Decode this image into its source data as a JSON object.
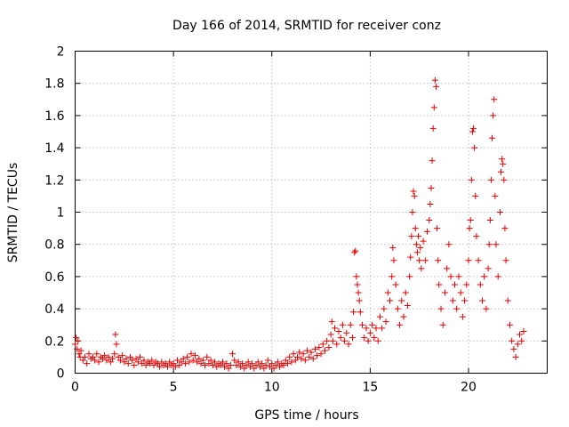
{
  "chart_data": {
    "type": "scatter",
    "title": "Day 166 of 2014, SRMTID for receiver conz",
    "xlabel": "GPS time / hours",
    "ylabel": "SRMTID / TECUs",
    "xlim": [
      0,
      24
    ],
    "ylim": [
      0,
      2
    ],
    "xticks": [
      0,
      5,
      10,
      15,
      20
    ],
    "yticks": [
      0,
      0.2,
      0.4,
      0.6,
      0.8,
      1,
      1.2,
      1.4,
      1.6,
      1.8,
      2
    ],
    "xtick_labels": [
      "0",
      "5",
      "10",
      "15",
      "20"
    ],
    "ytick_labels": [
      "0",
      "0.2",
      "0.4",
      "0.6",
      "0.8",
      "1",
      "1.2",
      "1.4",
      "1.6",
      "1.8",
      "2"
    ],
    "grid": true,
    "marker": "plus",
    "color": "#e00000",
    "series": [
      {
        "name": "conz",
        "points": [
          [
            0.0,
            0.18
          ],
          [
            0.05,
            0.22
          ],
          [
            0.1,
            0.15
          ],
          [
            0.15,
            0.2
          ],
          [
            0.2,
            0.12
          ],
          [
            0.25,
            0.1
          ],
          [
            0.3,
            0.14
          ],
          [
            0.4,
            0.08
          ],
          [
            0.5,
            0.1
          ],
          [
            0.6,
            0.06
          ],
          [
            0.7,
            0.12
          ],
          [
            0.8,
            0.09
          ],
          [
            0.9,
            0.1
          ],
          [
            1.0,
            0.08
          ],
          [
            1.1,
            0.12
          ],
          [
            1.2,
            0.07
          ],
          [
            1.3,
            0.1
          ],
          [
            1.4,
            0.09
          ],
          [
            1.5,
            0.11
          ],
          [
            1.6,
            0.08
          ],
          [
            1.7,
            0.1
          ],
          [
            1.8,
            0.07
          ],
          [
            1.9,
            0.09
          ],
          [
            2.0,
            0.12
          ],
          [
            2.05,
            0.24
          ],
          [
            2.1,
            0.18
          ],
          [
            2.2,
            0.1
          ],
          [
            2.3,
            0.08
          ],
          [
            2.4,
            0.11
          ],
          [
            2.5,
            0.07
          ],
          [
            2.6,
            0.09
          ],
          [
            2.7,
            0.06
          ],
          [
            2.8,
            0.1
          ],
          [
            2.9,
            0.08
          ],
          [
            3.0,
            0.05
          ],
          [
            3.1,
            0.09
          ],
          [
            3.2,
            0.07
          ],
          [
            3.3,
            0.1
          ],
          [
            3.4,
            0.06
          ],
          [
            3.5,
            0.08
          ],
          [
            3.6,
            0.05
          ],
          [
            3.7,
            0.07
          ],
          [
            3.8,
            0.06
          ],
          [
            3.9,
            0.08
          ],
          [
            4.0,
            0.05
          ],
          [
            4.1,
            0.07
          ],
          [
            4.2,
            0.06
          ],
          [
            4.3,
            0.04
          ],
          [
            4.4,
            0.07
          ],
          [
            4.5,
            0.05
          ],
          [
            4.6,
            0.06
          ],
          [
            4.7,
            0.04
          ],
          [
            4.8,
            0.07
          ],
          [
            4.9,
            0.05
          ],
          [
            5.0,
            0.06
          ],
          [
            5.1,
            0.04
          ],
          [
            5.2,
            0.08
          ],
          [
            5.3,
            0.05
          ],
          [
            5.4,
            0.07
          ],
          [
            5.5,
            0.09
          ],
          [
            5.6,
            0.06
          ],
          [
            5.7,
            0.1
          ],
          [
            5.8,
            0.07
          ],
          [
            5.9,
            0.12
          ],
          [
            6.0,
            0.08
          ],
          [
            6.1,
            0.11
          ],
          [
            6.2,
            0.07
          ],
          [
            6.3,
            0.09
          ],
          [
            6.4,
            0.06
          ],
          [
            6.5,
            0.08
          ],
          [
            6.6,
            0.05
          ],
          [
            6.7,
            0.1
          ],
          [
            6.8,
            0.06
          ],
          [
            6.9,
            0.08
          ],
          [
            7.0,
            0.05
          ],
          [
            7.1,
            0.07
          ],
          [
            7.2,
            0.04
          ],
          [
            7.3,
            0.06
          ],
          [
            7.4,
            0.05
          ],
          [
            7.5,
            0.07
          ],
          [
            7.6,
            0.04
          ],
          [
            7.7,
            0.06
          ],
          [
            7.8,
            0.03
          ],
          [
            7.9,
            0.05
          ],
          [
            8.0,
            0.12
          ],
          [
            8.1,
            0.08
          ],
          [
            8.2,
            0.05
          ],
          [
            8.3,
            0.07
          ],
          [
            8.4,
            0.04
          ],
          [
            8.5,
            0.06
          ],
          [
            8.6,
            0.03
          ],
          [
            8.7,
            0.05
          ],
          [
            8.8,
            0.07
          ],
          [
            8.9,
            0.04
          ],
          [
            9.0,
            0.06
          ],
          [
            9.1,
            0.03
          ],
          [
            9.2,
            0.05
          ],
          [
            9.3,
            0.07
          ],
          [
            9.4,
            0.04
          ],
          [
            9.5,
            0.06
          ],
          [
            9.6,
            0.03
          ],
          [
            9.7,
            0.05
          ],
          [
            9.8,
            0.08
          ],
          [
            9.9,
            0.04
          ],
          [
            10.0,
            0.06
          ],
          [
            10.1,
            0.03
          ],
          [
            10.2,
            0.05
          ],
          [
            10.3,
            0.07
          ],
          [
            10.4,
            0.04
          ],
          [
            10.5,
            0.06
          ],
          [
            10.6,
            0.05
          ],
          [
            10.7,
            0.08
          ],
          [
            10.8,
            0.06
          ],
          [
            10.9,
            0.1
          ],
          [
            11.0,
            0.07
          ],
          [
            11.1,
            0.12
          ],
          [
            11.2,
            0.08
          ],
          [
            11.3,
            0.1
          ],
          [
            11.4,
            0.13
          ],
          [
            11.5,
            0.09
          ],
          [
            11.6,
            0.12
          ],
          [
            11.7,
            0.08
          ],
          [
            11.8,
            0.14
          ],
          [
            11.9,
            0.1
          ],
          [
            12.0,
            0.13
          ],
          [
            12.1,
            0.09
          ],
          [
            12.2,
            0.15
          ],
          [
            12.3,
            0.11
          ],
          [
            12.4,
            0.16
          ],
          [
            12.5,
            0.12
          ],
          [
            12.6,
            0.18
          ],
          [
            12.7,
            0.14
          ],
          [
            12.8,
            0.2
          ],
          [
            12.9,
            0.16
          ],
          [
            13.0,
            0.24
          ],
          [
            13.05,
            0.32
          ],
          [
            13.1,
            0.2
          ],
          [
            13.2,
            0.28
          ],
          [
            13.3,
            0.18
          ],
          [
            13.4,
            0.26
          ],
          [
            13.5,
            0.22
          ],
          [
            13.6,
            0.3
          ],
          [
            13.7,
            0.2
          ],
          [
            13.8,
            0.25
          ],
          [
            13.9,
            0.18
          ],
          [
            14.0,
            0.3
          ],
          [
            14.1,
            0.22
          ],
          [
            14.15,
            0.38
          ],
          [
            14.2,
            0.75
          ],
          [
            14.25,
            0.76
          ],
          [
            14.3,
            0.6
          ],
          [
            14.35,
            0.55
          ],
          [
            14.4,
            0.5
          ],
          [
            14.45,
            0.45
          ],
          [
            14.5,
            0.38
          ],
          [
            14.6,
            0.3
          ],
          [
            14.7,
            0.22
          ],
          [
            14.8,
            0.28
          ],
          [
            14.9,
            0.2
          ],
          [
            15.0,
            0.25
          ],
          [
            15.1,
            0.3
          ],
          [
            15.2,
            0.22
          ],
          [
            15.3,
            0.28
          ],
          [
            15.4,
            0.2
          ],
          [
            15.5,
            0.35
          ],
          [
            15.6,
            0.28
          ],
          [
            15.7,
            0.4
          ],
          [
            15.8,
            0.32
          ],
          [
            15.9,
            0.5
          ],
          [
            16.0,
            0.45
          ],
          [
            16.1,
            0.6
          ],
          [
            16.15,
            0.78
          ],
          [
            16.2,
            0.7
          ],
          [
            16.3,
            0.55
          ],
          [
            16.4,
            0.4
          ],
          [
            16.5,
            0.3
          ],
          [
            16.6,
            0.45
          ],
          [
            16.7,
            0.35
          ],
          [
            16.8,
            0.5
          ],
          [
            16.9,
            0.42
          ],
          [
            17.0,
            0.6
          ],
          [
            17.05,
            0.72
          ],
          [
            17.1,
            0.85
          ],
          [
            17.15,
            1.0
          ],
          [
            17.2,
            1.13
          ],
          [
            17.25,
            1.1
          ],
          [
            17.3,
            0.9
          ],
          [
            17.35,
            0.8
          ],
          [
            17.4,
            0.75
          ],
          [
            17.45,
            0.85
          ],
          [
            17.5,
            0.7
          ],
          [
            17.55,
            0.78
          ],
          [
            17.6,
            0.65
          ],
          [
            17.7,
            0.82
          ],
          [
            17.8,
            0.7
          ],
          [
            17.9,
            0.88
          ],
          [
            18.0,
            0.95
          ],
          [
            18.05,
            1.05
          ],
          [
            18.1,
            1.15
          ],
          [
            18.15,
            1.32
          ],
          [
            18.2,
            1.52
          ],
          [
            18.25,
            1.65
          ],
          [
            18.3,
            1.82
          ],
          [
            18.35,
            1.78
          ],
          [
            18.4,
            0.9
          ],
          [
            18.45,
            0.7
          ],
          [
            18.5,
            0.55
          ],
          [
            18.6,
            0.4
          ],
          [
            18.7,
            0.3
          ],
          [
            18.8,
            0.5
          ],
          [
            18.9,
            0.65
          ],
          [
            19.0,
            0.8
          ],
          [
            19.1,
            0.6
          ],
          [
            19.2,
            0.45
          ],
          [
            19.3,
            0.55
          ],
          [
            19.4,
            0.4
          ],
          [
            19.5,
            0.6
          ],
          [
            19.6,
            0.5
          ],
          [
            19.7,
            0.35
          ],
          [
            19.8,
            0.45
          ],
          [
            19.9,
            0.55
          ],
          [
            20.0,
            0.7
          ],
          [
            20.05,
            0.9
          ],
          [
            20.1,
            0.95
          ],
          [
            20.15,
            1.2
          ],
          [
            20.2,
            1.5
          ],
          [
            20.25,
            1.52
          ],
          [
            20.3,
            1.4
          ],
          [
            20.35,
            1.1
          ],
          [
            20.4,
            0.85
          ],
          [
            20.5,
            0.7
          ],
          [
            20.6,
            0.55
          ],
          [
            20.7,
            0.45
          ],
          [
            20.8,
            0.6
          ],
          [
            20.9,
            0.4
          ],
          [
            21.0,
            0.65
          ],
          [
            21.05,
            0.8
          ],
          [
            21.1,
            0.95
          ],
          [
            21.15,
            1.2
          ],
          [
            21.2,
            1.46
          ],
          [
            21.25,
            1.6
          ],
          [
            21.3,
            1.7
          ],
          [
            21.35,
            1.1
          ],
          [
            21.4,
            0.8
          ],
          [
            21.5,
            0.6
          ],
          [
            21.6,
            1.0
          ],
          [
            21.65,
            1.25
          ],
          [
            21.7,
            1.33
          ],
          [
            21.75,
            1.3
          ],
          [
            21.8,
            1.2
          ],
          [
            21.85,
            0.9
          ],
          [
            21.9,
            0.7
          ],
          [
            22.0,
            0.45
          ],
          [
            22.1,
            0.3
          ],
          [
            22.2,
            0.2
          ],
          [
            22.3,
            0.15
          ],
          [
            22.4,
            0.1
          ],
          [
            22.5,
            0.18
          ],
          [
            22.6,
            0.24
          ],
          [
            22.7,
            0.2
          ],
          [
            22.8,
            0.26
          ]
        ]
      }
    ]
  }
}
